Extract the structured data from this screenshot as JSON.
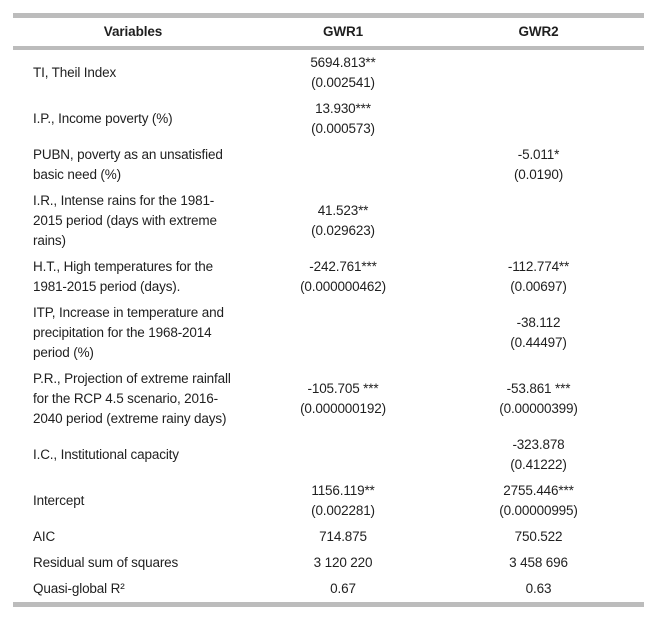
{
  "table": {
    "header": {
      "variables": "Variables",
      "gwr1": "GWR1",
      "gwr2": "GWR2"
    },
    "rows": [
      {
        "label": "TI, Theil Index",
        "gwr1": "5694.813**\n(0.002541)",
        "gwr2": ""
      },
      {
        "label": "I.P., Income poverty (%)",
        "gwr1": "13.930***\n(0.000573)",
        "gwr2": ""
      },
      {
        "label": "PUBN, poverty as an unsatisfied\nbasic need (%)",
        "gwr1": "",
        "gwr2": "-5.011*\n(0.0190)"
      },
      {
        "label": "I.R., Intense rains for the 1981-\n2015 period (days with extreme\nrains)",
        "gwr1": "41.523**\n(0.029623)",
        "gwr2": ""
      },
      {
        "label": "H.T., High temperatures for the\n1981-2015 period (days).",
        "gwr1": "-242.761***\n(0.000000462)",
        "gwr2": "-112.774**\n(0.00697)"
      },
      {
        "label": "ITP, Increase in temperature and\nprecipitation for the 1968-2014\nperiod (%)",
        "gwr1": "",
        "gwr2": "-38.112\n(0.44497)"
      },
      {
        "label": "P.R., Projection of extreme rainfall\nfor the RCP 4.5 scenario, 2016-\n2040 period (extreme rainy days)",
        "gwr1": "-105.705 ***\n(0.000000192)",
        "gwr2": "-53.861 ***\n(0.00000399)"
      },
      {
        "label": "I.C., Institutional capacity",
        "gwr1": "",
        "gwr2": "-323.878\n(0.41222)"
      },
      {
        "label": "Intercept",
        "gwr1": "1156.119**\n(0.002281)",
        "gwr2": "2755.446***\n(0.00000995)"
      },
      {
        "label": "AIC",
        "gwr1": "714.875",
        "gwr2": "750.522"
      },
      {
        "label": "Residual sum of squares",
        "gwr1": "3 120 220",
        "gwr2": "3 458 696"
      },
      {
        "label": "Quasi-global R²",
        "gwr1": "0.67",
        "gwr2": "0.63"
      }
    ]
  }
}
